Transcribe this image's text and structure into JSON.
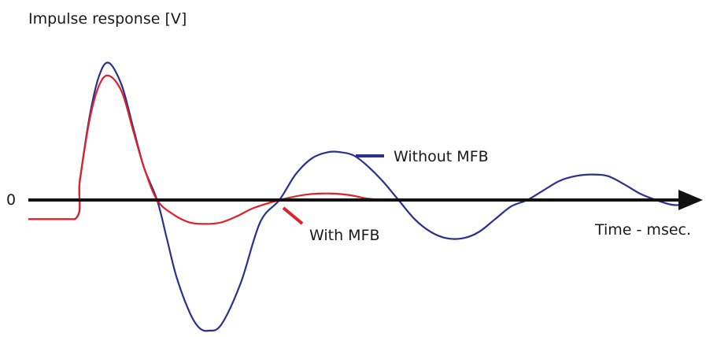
{
  "chart_data": {
    "type": "line",
    "ylabel": "Impulse response [V]",
    "xlabel": "Time - msec.",
    "zero_label": "0",
    "colors": {
      "without": "#2b2f8f",
      "with": "#e0202a",
      "axis": "#111111"
    },
    "series": [
      {
        "name": "Without MFB",
        "color": "#2b2f8f",
        "x": [
          0.0,
          2.9,
          3.2,
          3.8,
          4.4,
          5.0,
          5.8,
          6.5,
          7.2,
          8.0,
          8.6,
          9.2,
          10.0,
          10.6,
          11.2,
          12.0,
          13.2,
          14.4,
          15.6,
          16.6,
          17.6,
          18.6,
          19.4,
          20.2,
          21.0,
          22.0,
          23.0,
          24.0,
          25.0,
          26.0,
          27.0,
          28.0,
          29.0,
          30.0,
          31.0,
          32.0,
          33.0,
          34.0,
          35.0,
          36.0,
          37.0,
          38.0,
          39.0,
          40.0,
          41.0
        ],
        "y": [
          -0.6,
          -0.6,
          0.6,
          2.6,
          3.9,
          4.3,
          3.6,
          2.3,
          1.0,
          0.0,
          -1.2,
          -2.4,
          -3.5,
          -4.0,
          -4.1,
          -3.9,
          -2.6,
          -0.7,
          0.0,
          0.8,
          1.3,
          1.5,
          1.5,
          1.4,
          1.1,
          0.6,
          0.0,
          -0.6,
          -1.0,
          -1.2,
          -1.2,
          -1.0,
          -0.6,
          -0.2,
          0.0,
          0.3,
          0.6,
          0.75,
          0.8,
          0.75,
          0.5,
          0.2,
          0.0,
          -0.15,
          -0.15
        ]
      },
      {
        "name": "With MFB",
        "color": "#e0202a",
        "x": [
          0.0,
          2.9,
          3.2,
          3.8,
          4.4,
          5.0,
          5.8,
          6.5,
          7.2,
          8.0,
          9.0,
          10.0,
          11.0,
          12.0,
          13.0,
          14.0,
          15.6,
          17.0,
          18.0,
          19.0,
          20.0,
          21.0,
          22.0
        ],
        "y": [
          -0.6,
          -0.6,
          0.6,
          2.5,
          3.6,
          3.9,
          3.4,
          2.2,
          1.0,
          0.0,
          -0.45,
          -0.7,
          -0.75,
          -0.7,
          -0.5,
          -0.25,
          0.0,
          0.15,
          0.2,
          0.2,
          0.15,
          0.05,
          0.0
        ]
      }
    ],
    "annotations": [
      {
        "text": "Without MFB",
        "series": "Without MFB"
      },
      {
        "text": "With MFB",
        "series": "With MFB"
      }
    ],
    "grid": false,
    "legend": "none"
  }
}
